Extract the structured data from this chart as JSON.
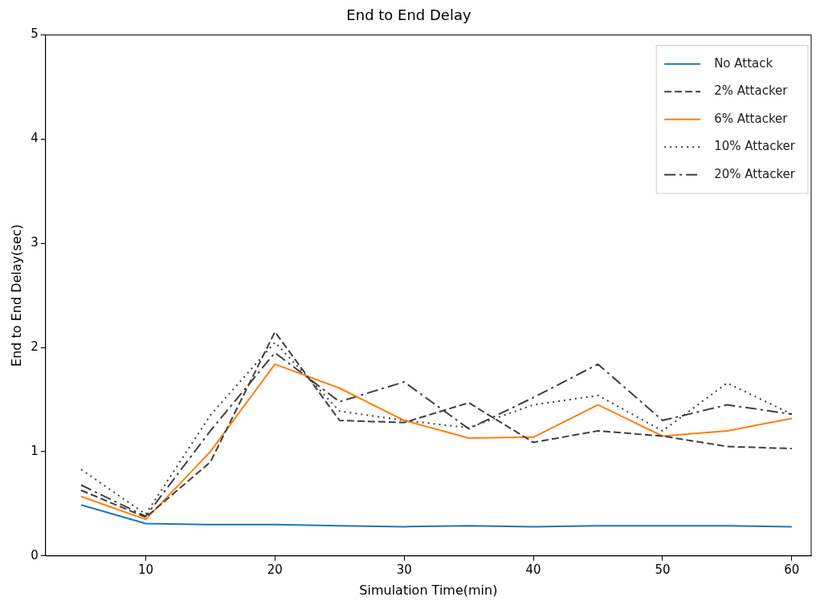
{
  "chart_data": {
    "type": "line",
    "title": "End to End Delay",
    "xlabel": "Simulation Time(min)",
    "ylabel": "End to End Delay(sec)",
    "x": [
      5,
      10,
      15,
      20,
      25,
      30,
      35,
      40,
      45,
      50,
      55,
      60
    ],
    "series": [
      {
        "name": "No Attack",
        "color": "#1f77b4",
        "line_style": "solid",
        "values": [
          0.49,
          0.31,
          0.3,
          0.3,
          0.29,
          0.28,
          0.29,
          0.28,
          0.29,
          0.29,
          0.29,
          0.28
        ]
      },
      {
        "name": "2% Attacker",
        "color": "#404040",
        "line_style": "dashed",
        "values": [
          0.63,
          0.37,
          0.9,
          2.15,
          1.3,
          1.28,
          1.47,
          1.09,
          1.2,
          1.15,
          1.05,
          1.03
        ]
      },
      {
        "name": "6% Attacker",
        "color": "#ff7f0e",
        "line_style": "solid",
        "values": [
          0.57,
          0.35,
          1.0,
          1.84,
          1.61,
          1.3,
          1.13,
          1.14,
          1.45,
          1.15,
          1.2,
          1.32
        ]
      },
      {
        "name": "10% Attacker",
        "color": "#404040",
        "line_style": "dotted",
        "values": [
          0.83,
          0.4,
          1.35,
          2.05,
          1.39,
          1.3,
          1.23,
          1.45,
          1.54,
          1.2,
          1.66,
          1.36
        ]
      },
      {
        "name": "20% Attacker",
        "color": "#404040",
        "line_style": "dashdot",
        "values": [
          0.68,
          0.38,
          1.2,
          1.95,
          1.48,
          1.67,
          1.22,
          1.52,
          1.84,
          1.3,
          1.45,
          1.36
        ]
      }
    ],
    "xlim": [
      2.25,
      61.5
    ],
    "xticks": [
      10,
      20,
      30,
      40,
      50,
      60
    ],
    "ylim": [
      0,
      5
    ],
    "yticks": [
      0,
      1,
      2,
      3,
      4,
      5
    ],
    "grid": false,
    "legend": "top right",
    "marker": "none"
  }
}
